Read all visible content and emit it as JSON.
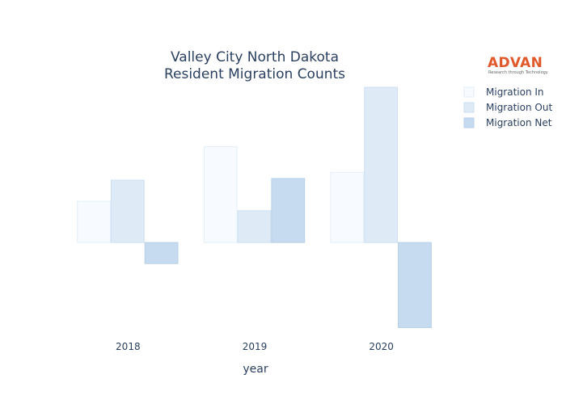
{
  "chart_data": {
    "type": "bar",
    "title_lines": [
      "Valley City North Dakota",
      "Resident Migration Counts"
    ],
    "xlabel": "year",
    "ylabel": "",
    "categories": [
      "2018",
      "2019",
      "2020"
    ],
    "series": [
      {
        "name": "Migration In",
        "values": [
          100,
          232,
          170
        ],
        "color": "#f7fbff",
        "stroke": "#e3eefa"
      },
      {
        "name": "Migration Out",
        "values": [
          151,
          77,
          376
        ],
        "color": "#deebf7",
        "stroke": "#cddff2"
      },
      {
        "name": "Migration Net",
        "values": [
          -51,
          155,
          -206
        ],
        "color": "#c6dbef",
        "stroke": "#b6cfe8"
      }
    ],
    "ylim": [
      -215,
      380
    ],
    "grid": false,
    "yaxis_visible": false,
    "legend_position": "top-right"
  },
  "logo": {
    "name": "ADVAN",
    "tagline": "Research through Technology"
  }
}
